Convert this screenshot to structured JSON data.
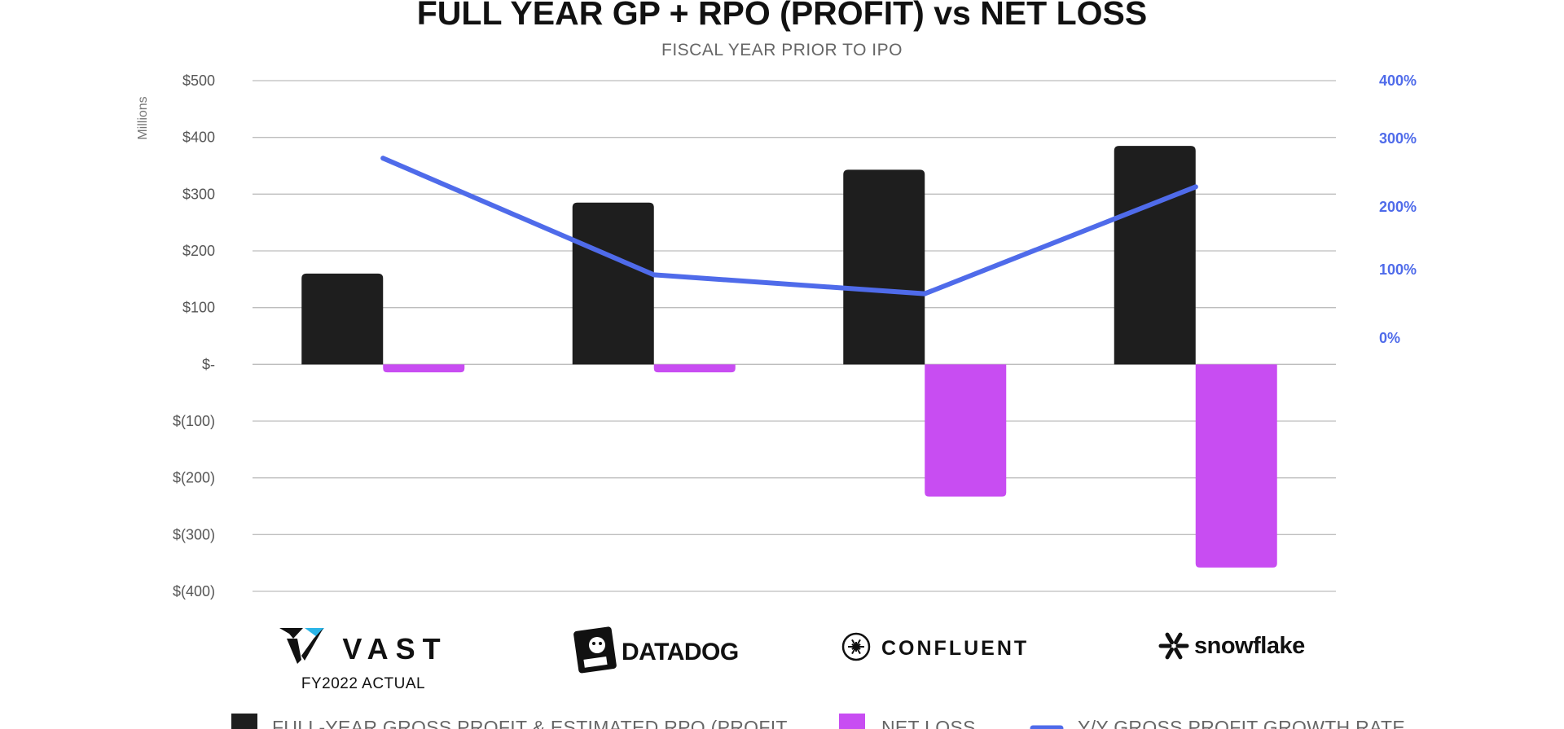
{
  "chart_data": {
    "type": "bar",
    "title": "FULL YEAR GP + RPO (PROFIT) vs NET LOSS",
    "subtitle": "FISCAL YEAR PRIOR TO IPO",
    "ylabel": "Millions",
    "ylim": [
      -400,
      500
    ],
    "y_ticks": [
      "$500",
      "$400",
      "$300",
      "$200",
      "$100",
      "$-",
      "$(100)",
      "$(200)",
      "$(300)",
      "$(400)"
    ],
    "y2_ticks": [
      "400%",
      "300%",
      "200%",
      "100%",
      "0%"
    ],
    "categories": [
      "VAST",
      "DATADOG",
      "CONFLUENT",
      "snowflake"
    ],
    "category_caption": "FY2022 ACTUAL",
    "grid": true,
    "legend_position": "bottom",
    "series": [
      {
        "name": "FULL-YEAR GROSS PROFIT & ESTIMATED RPO (PROFIT",
        "type": "bar",
        "color": "#1E1E1E",
        "values": [
          160,
          285,
          343,
          385
        ]
      },
      {
        "name": "NET LOSS",
        "type": "bar",
        "color": "#C84DF2",
        "values": [
          -14,
          -14,
          -233,
          -358
        ]
      },
      {
        "name": "Y/Y GROSS PROFIT GROWTH RATE",
        "type": "line",
        "axis": "right",
        "color": "#4F6BEA",
        "values": [
          276,
          97,
          68,
          232
        ]
      }
    ]
  }
}
